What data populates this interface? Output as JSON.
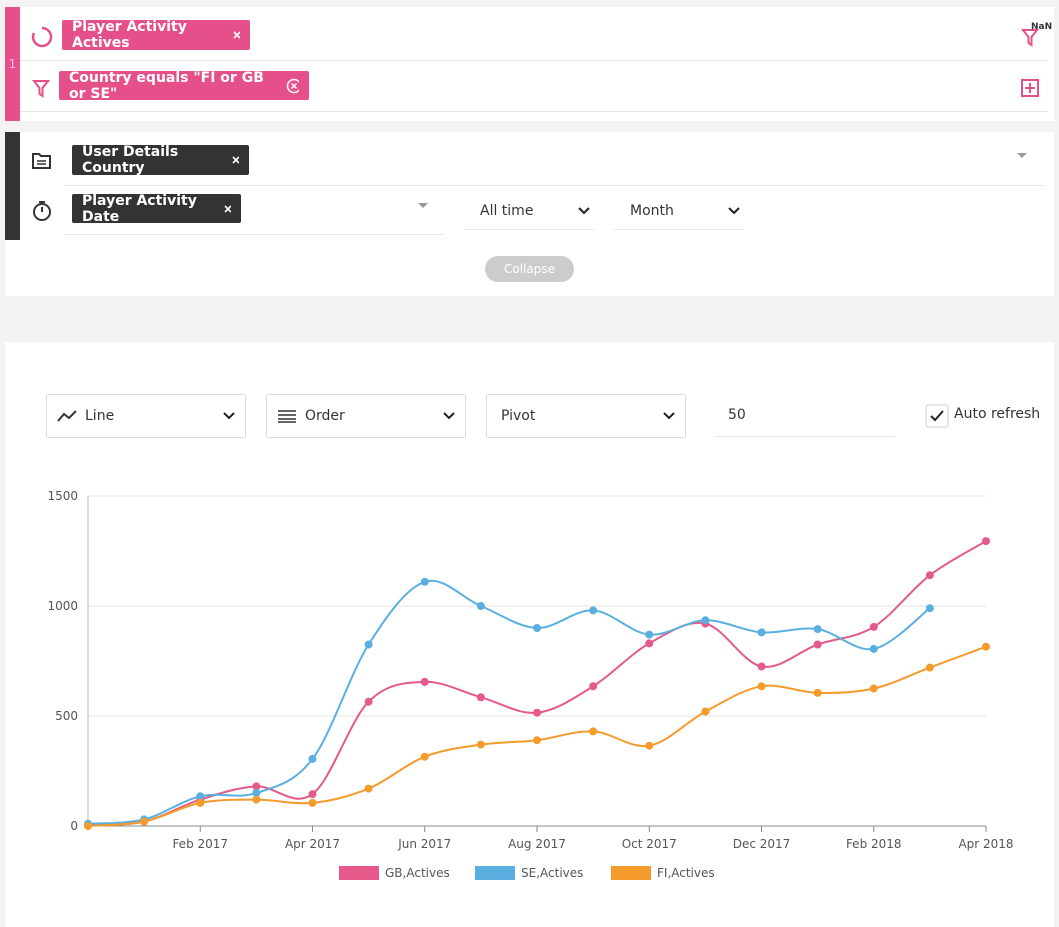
{
  "query": {
    "row_number": "1",
    "measure": "Player Activity Actives",
    "filter_badge": "NaN",
    "filter": "Country equals \"FI or GB or SE\""
  },
  "dimensions": {
    "dimension": "User Details Country",
    "time_dimension": "Player Activity Date",
    "date_range": "All time",
    "granularity": "Month",
    "collapse": "Collapse"
  },
  "controls": {
    "chart_type": "Line",
    "order": "Order",
    "pivot": "Pivot",
    "limit": 50,
    "auto_refresh": "Auto refresh"
  },
  "chart_data": {
    "type": "line",
    "categories": [
      null,
      null,
      "Feb 2017",
      null,
      "Apr 2017",
      null,
      "Jun 2017",
      null,
      "Aug 2017",
      null,
      "Oct 2017",
      null,
      "Dec 2017",
      null,
      "Feb 2018",
      null,
      "Apr 2018"
    ],
    "series": [
      {
        "name": "GB,Actives",
        "color": "#e5598b",
        "values": [
          5,
          20,
          120,
          180,
          145,
          565,
          655,
          585,
          515,
          635,
          830,
          920,
          725,
          825,
          905,
          1140,
          1295
        ]
      },
      {
        "name": "SE,Actives",
        "color": "#5aafe0",
        "values": [
          10,
          30,
          135,
          150,
          305,
          825,
          1110,
          1000,
          900,
          980,
          870,
          935,
          880,
          895,
          805,
          990,
          null
        ]
      },
      {
        "name": "FI,Actives",
        "color": "#f49b2b",
        "values": [
          0,
          20,
          105,
          120,
          105,
          170,
          315,
          370,
          390,
          430,
          365,
          520,
          635,
          605,
          625,
          720,
          815
        ]
      }
    ],
    "ylim": [
      0,
      1500
    ],
    "yticks": [
      0,
      500,
      1000,
      1500
    ],
    "grid": true,
    "legend": "bottom"
  }
}
